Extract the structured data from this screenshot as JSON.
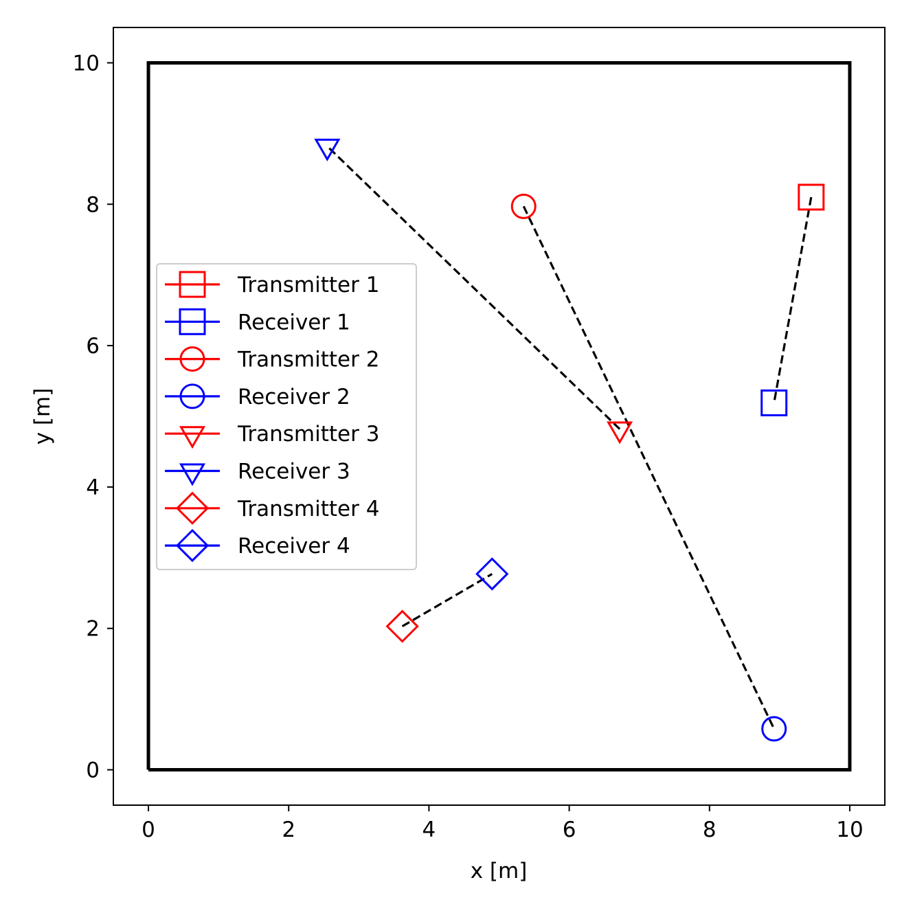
{
  "chart_data": {
    "type": "scatter",
    "title": "",
    "xlabel": "x [m]",
    "ylabel": "y [m]",
    "xlim": [
      -0.5,
      10.5
    ],
    "ylim": [
      -0.5,
      10.5
    ],
    "xticks": [
      "0",
      "2",
      "4",
      "6",
      "8",
      "10"
    ],
    "yticks": [
      "0",
      "2",
      "4",
      "6",
      "8",
      "10"
    ],
    "grid": false,
    "legend_position": "center-left",
    "boundary": {
      "x": [
        0,
        10,
        10,
        0,
        0
      ],
      "y": [
        0,
        0,
        10,
        10,
        0
      ],
      "color": "#000000"
    },
    "colors": {
      "transmitter": "#ff0000",
      "receiver": "#0000ff",
      "link": "#000000"
    },
    "pairs": [
      {
        "id": 1,
        "marker": "square",
        "transmitter": {
          "label": "Transmitter 1",
          "x": 9.45,
          "y": 8.1
        },
        "receiver": {
          "label": "Receiver 1",
          "x": 8.92,
          "y": 5.19
        }
      },
      {
        "id": 2,
        "marker": "circle",
        "transmitter": {
          "label": "Transmitter 2",
          "x": 5.35,
          "y": 7.97
        },
        "receiver": {
          "label": "Receiver 2",
          "x": 8.92,
          "y": 0.58
        }
      },
      {
        "id": 3,
        "marker": "triangle-down",
        "transmitter": {
          "label": "Transmitter 3",
          "x": 6.72,
          "y": 4.82
        },
        "receiver": {
          "label": "Receiver 3",
          "x": 2.55,
          "y": 8.82
        }
      },
      {
        "id": 4,
        "marker": "diamond",
        "transmitter": {
          "label": "Transmitter 4",
          "x": 3.62,
          "y": 2.03
        },
        "receiver": {
          "label": "Receiver 4",
          "x": 4.9,
          "y": 2.77
        }
      }
    ]
  }
}
